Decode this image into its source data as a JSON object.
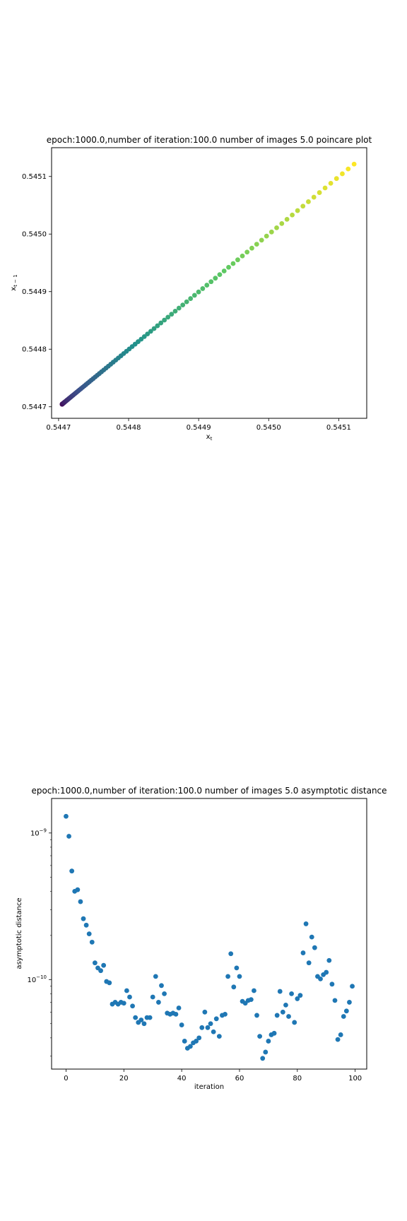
{
  "chart_data": [
    {
      "type": "scatter",
      "title": "epoch:1000.0,number of iteration:100.0 number of images 5.0 poincare plot",
      "xlabel": "x",
      "xlabel_sub": "t",
      "ylabel": "x",
      "ylabel_sub": "t − 1",
      "xlim": [
        0.54469,
        0.54514
      ],
      "ylim": [
        0.54468,
        0.54515
      ],
      "xticks": [
        0.5447,
        0.5448,
        0.5449,
        0.545,
        0.5451
      ],
      "xtick_labels": [
        "0.5447",
        "0.5448",
        "0.5449",
        "0.5450",
        "0.5451"
      ],
      "yticks": [
        0.5447,
        0.5448,
        0.5449,
        0.545,
        0.5451
      ],
      "ytick_labels": [
        "0.5447",
        "0.5448",
        "0.5449",
        "0.5450",
        "0.5451"
      ],
      "grid": false,
      "colormap": "viridis",
      "x_start": 0.544705,
      "x_end": 0.545122,
      "num_points": 99,
      "marker_color_first": "#440154",
      "marker_color_last": "#fde725"
    },
    {
      "type": "scatter",
      "title": "epoch:1000.0,number of iteration:100.0  number of images 5.0 asymptotic distance",
      "xlabel": "iteration",
      "ylabel": "asymptotic distance",
      "yscale": "log",
      "xlim": [
        -5,
        104
      ],
      "ylim": [
        2.45e-11,
        1.72e-09
      ],
      "xticks": [
        0,
        20,
        40,
        60,
        80,
        100
      ],
      "xtick_labels": [
        "0",
        "20",
        "40",
        "60",
        "80",
        "100"
      ],
      "yticks_major": [
        1e-10,
        1e-09
      ],
      "ytick_labels": [
        "10",
        "10"
      ],
      "ytick_exponents": [
        "−10",
        "−9"
      ],
      "grid": false,
      "marker_color": "#1f77b4",
      "x": [
        0,
        1,
        2,
        3,
        4,
        5,
        6,
        7,
        8,
        9,
        10,
        11,
        12,
        13,
        14,
        15,
        16,
        17,
        18,
        19,
        20,
        21,
        22,
        23,
        24,
        25,
        26,
        27,
        28,
        29,
        30,
        31,
        32,
        33,
        34,
        35,
        36,
        37,
        38,
        39,
        40,
        41,
        42,
        43,
        44,
        45,
        46,
        47,
        48,
        49,
        50,
        51,
        52,
        53,
        54,
        55,
        56,
        57,
        58,
        59,
        60,
        61,
        62,
        63,
        64,
        65,
        66,
        67,
        68,
        69,
        70,
        71,
        72,
        73,
        74,
        75,
        76,
        77,
        78,
        79,
        80,
        81,
        82,
        83,
        84,
        85,
        86,
        87,
        88,
        89,
        90,
        91,
        92,
        93,
        94,
        95,
        96,
        97,
        98,
        99
      ],
      "y": [
        1.3e-09,
        9.5e-10,
        5.5e-10,
        4e-10,
        4.1e-10,
        3.4e-10,
        2.6e-10,
        2.35e-10,
        2.05e-10,
        1.8e-10,
        1.3e-10,
        1.2e-10,
        1.15e-10,
        1.25e-10,
        9.7e-11,
        9.5e-11,
        6.8e-11,
        7e-11,
        6.8e-11,
        7e-11,
        6.9e-11,
        8.4e-11,
        7.6e-11,
        6.6e-11,
        5.5e-11,
        5.1e-11,
        5.3e-11,
        5e-11,
        5.5e-11,
        5.5e-11,
        7.6e-11,
        1.05e-10,
        7e-11,
        9.1e-11,
        8e-11,
        5.9e-11,
        5.8e-11,
        5.9e-11,
        5.8e-11,
        6.4e-11,
        4.9e-11,
        3.8e-11,
        3.4e-11,
        3.5e-11,
        3.7e-11,
        3.8e-11,
        4e-11,
        4.7e-11,
        6e-11,
        4.7e-11,
        5e-11,
        4.4e-11,
        5.4e-11,
        4.1e-11,
        5.7e-11,
        5.8e-11,
        1.05e-10,
        1.5e-10,
        8.9e-11,
        1.2e-10,
        1.05e-10,
        7.1e-11,
        6.9e-11,
        7.2e-11,
        7.3e-11,
        8.4e-11,
        5.7e-11,
        4.1e-11,
        2.9e-11,
        3.2e-11,
        3.8e-11,
        4.2e-11,
        4.3e-11,
        5.7e-11,
        8.3e-11,
        6e-11,
        6.7e-11,
        5.6e-11,
        8e-11,
        5.1e-11,
        7.4e-11,
        7.8e-11,
        1.52e-10,
        2.4e-10,
        1.3e-10,
        1.95e-10,
        1.65e-10,
        1.05e-10,
        1.01e-10,
        1.08e-10,
        1.12e-10,
        1.35e-10,
        9.3e-11,
        7.2e-11,
        3.9e-11,
        4.2e-11,
        5.6e-11,
        6.1e-11,
        7e-11,
        9e-11
      ]
    }
  ]
}
